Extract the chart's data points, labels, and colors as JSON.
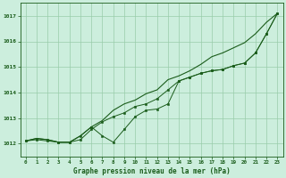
{
  "title": "Graphe pression niveau de la mer (hPa)",
  "bg_color": "#cceedd",
  "grid_color": "#99ccaa",
  "line_color": "#1a5c1a",
  "xlim": [
    -0.5,
    23.5
  ],
  "ylim": [
    1011.5,
    1017.5
  ],
  "yticks": [
    1012,
    1013,
    1014,
    1015,
    1016,
    1017
  ],
  "xticks": [
    0,
    1,
    2,
    3,
    4,
    5,
    6,
    7,
    8,
    9,
    10,
    11,
    12,
    13,
    14,
    15,
    16,
    17,
    18,
    19,
    20,
    21,
    22,
    23
  ],
  "series1_no_marker": [
    [
      0,
      1012.1
    ],
    [
      1,
      1012.2
    ],
    [
      2,
      1012.15
    ],
    [
      3,
      1012.05
    ],
    [
      4,
      1012.05
    ],
    [
      5,
      1012.3
    ],
    [
      6,
      1012.65
    ],
    [
      7,
      1012.9
    ],
    [
      8,
      1013.3
    ],
    [
      9,
      1013.55
    ],
    [
      10,
      1013.7
    ],
    [
      11,
      1013.95
    ],
    [
      12,
      1014.1
    ],
    [
      13,
      1014.5
    ],
    [
      14,
      1014.65
    ],
    [
      15,
      1014.85
    ],
    [
      16,
      1015.1
    ],
    [
      17,
      1015.4
    ],
    [
      18,
      1015.55
    ],
    [
      19,
      1015.75
    ],
    [
      20,
      1015.95
    ],
    [
      21,
      1016.3
    ],
    [
      22,
      1016.75
    ],
    [
      23,
      1017.1
    ]
  ],
  "series2_marker": [
    [
      0,
      1012.1
    ],
    [
      1,
      1012.2
    ],
    [
      2,
      1012.15
    ],
    [
      3,
      1012.05
    ],
    [
      4,
      1012.05
    ],
    [
      5,
      1012.3
    ],
    [
      6,
      1012.65
    ],
    [
      7,
      1012.3
    ],
    [
      8,
      1012.05
    ],
    [
      9,
      1012.55
    ],
    [
      10,
      1013.05
    ],
    [
      11,
      1013.3
    ],
    [
      12,
      1013.35
    ],
    [
      13,
      1013.55
    ],
    [
      14,
      1014.45
    ],
    [
      15,
      1014.6
    ],
    [
      16,
      1014.75
    ],
    [
      17,
      1014.85
    ],
    [
      18,
      1014.9
    ],
    [
      19,
      1015.05
    ],
    [
      20,
      1015.15
    ],
    [
      21,
      1015.55
    ],
    [
      22,
      1016.3
    ],
    [
      23,
      1017.1
    ]
  ],
  "series3_marker": [
    [
      0,
      1012.1
    ],
    [
      1,
      1012.15
    ],
    [
      2,
      1012.1
    ],
    [
      3,
      1012.05
    ],
    [
      4,
      1012.05
    ],
    [
      5,
      1012.15
    ],
    [
      6,
      1012.55
    ],
    [
      7,
      1012.85
    ],
    [
      8,
      1013.05
    ],
    [
      9,
      1013.2
    ],
    [
      10,
      1013.45
    ],
    [
      11,
      1013.55
    ],
    [
      12,
      1013.75
    ],
    [
      13,
      1014.1
    ],
    [
      14,
      1014.45
    ],
    [
      15,
      1014.6
    ],
    [
      16,
      1014.75
    ],
    [
      17,
      1014.85
    ],
    [
      18,
      1014.9
    ],
    [
      19,
      1015.05
    ],
    [
      20,
      1015.15
    ],
    [
      21,
      1015.55
    ],
    [
      22,
      1016.3
    ],
    [
      23,
      1017.1
    ]
  ]
}
